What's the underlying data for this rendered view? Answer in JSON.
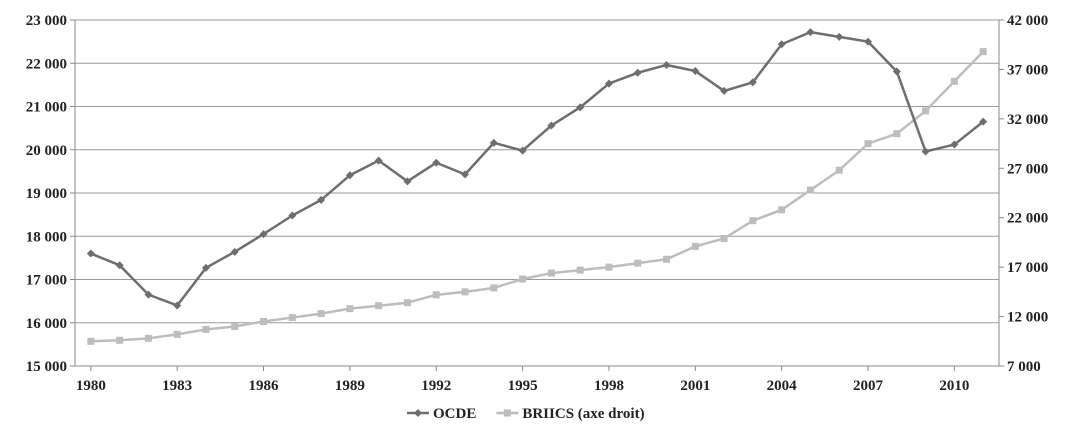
{
  "chart_data": {
    "type": "line",
    "x": [
      1980,
      1981,
      1982,
      1983,
      1984,
      1985,
      1986,
      1987,
      1988,
      1989,
      1990,
      1991,
      1992,
      1993,
      1994,
      1995,
      1996,
      1997,
      1998,
      1999,
      2000,
      2001,
      2002,
      2003,
      2004,
      2005,
      2006,
      2007,
      2008,
      2009,
      2010,
      2011
    ],
    "x_tick_labels": [
      "1980",
      "1983",
      "1986",
      "1989",
      "1992",
      "1995",
      "1998",
      "2001",
      "2004",
      "2007",
      "2010"
    ],
    "y_left": {
      "ylim": [
        15000,
        23000
      ],
      "tick_labels": [
        "15 000",
        "16 000",
        "17 000",
        "18 000",
        "19 000",
        "20 000",
        "21 000",
        "22 000",
        "23 000"
      ]
    },
    "y_right": {
      "ylim": [
        7000,
        42000
      ],
      "tick_labels": [
        "7 000",
        "12 000",
        "17 000",
        "22 000",
        "27 000",
        "32 000",
        "37 000",
        "42 000"
      ]
    },
    "grid": "horizontal",
    "legend_position": "bottom",
    "series": [
      {
        "name": "OCDE",
        "axis": "left",
        "color": "#6e6e6e",
        "marker": "diamond",
        "values": [
          17600,
          17330,
          16650,
          16400,
          17270,
          17640,
          18050,
          18480,
          18840,
          19410,
          19750,
          19270,
          19700,
          19430,
          20160,
          19980,
          20560,
          20980,
          21530,
          21780,
          21960,
          21820,
          21360,
          21560,
          22440,
          22720,
          22610,
          22500,
          21810,
          19960,
          20120,
          20650
        ]
      },
      {
        "name": "BRIICS (axe droit)",
        "axis": "right",
        "color": "#bdbdbd",
        "marker": "square",
        "values": [
          9500,
          9600,
          9800,
          10200,
          10700,
          11000,
          11500,
          11900,
          12300,
          12800,
          13100,
          13400,
          14200,
          14500,
          14900,
          15800,
          16400,
          16700,
          17000,
          17400,
          17800,
          19100,
          19900,
          21700,
          22800,
          24800,
          26800,
          29500,
          30500,
          32800,
          35800,
          38800
        ]
      }
    ]
  }
}
